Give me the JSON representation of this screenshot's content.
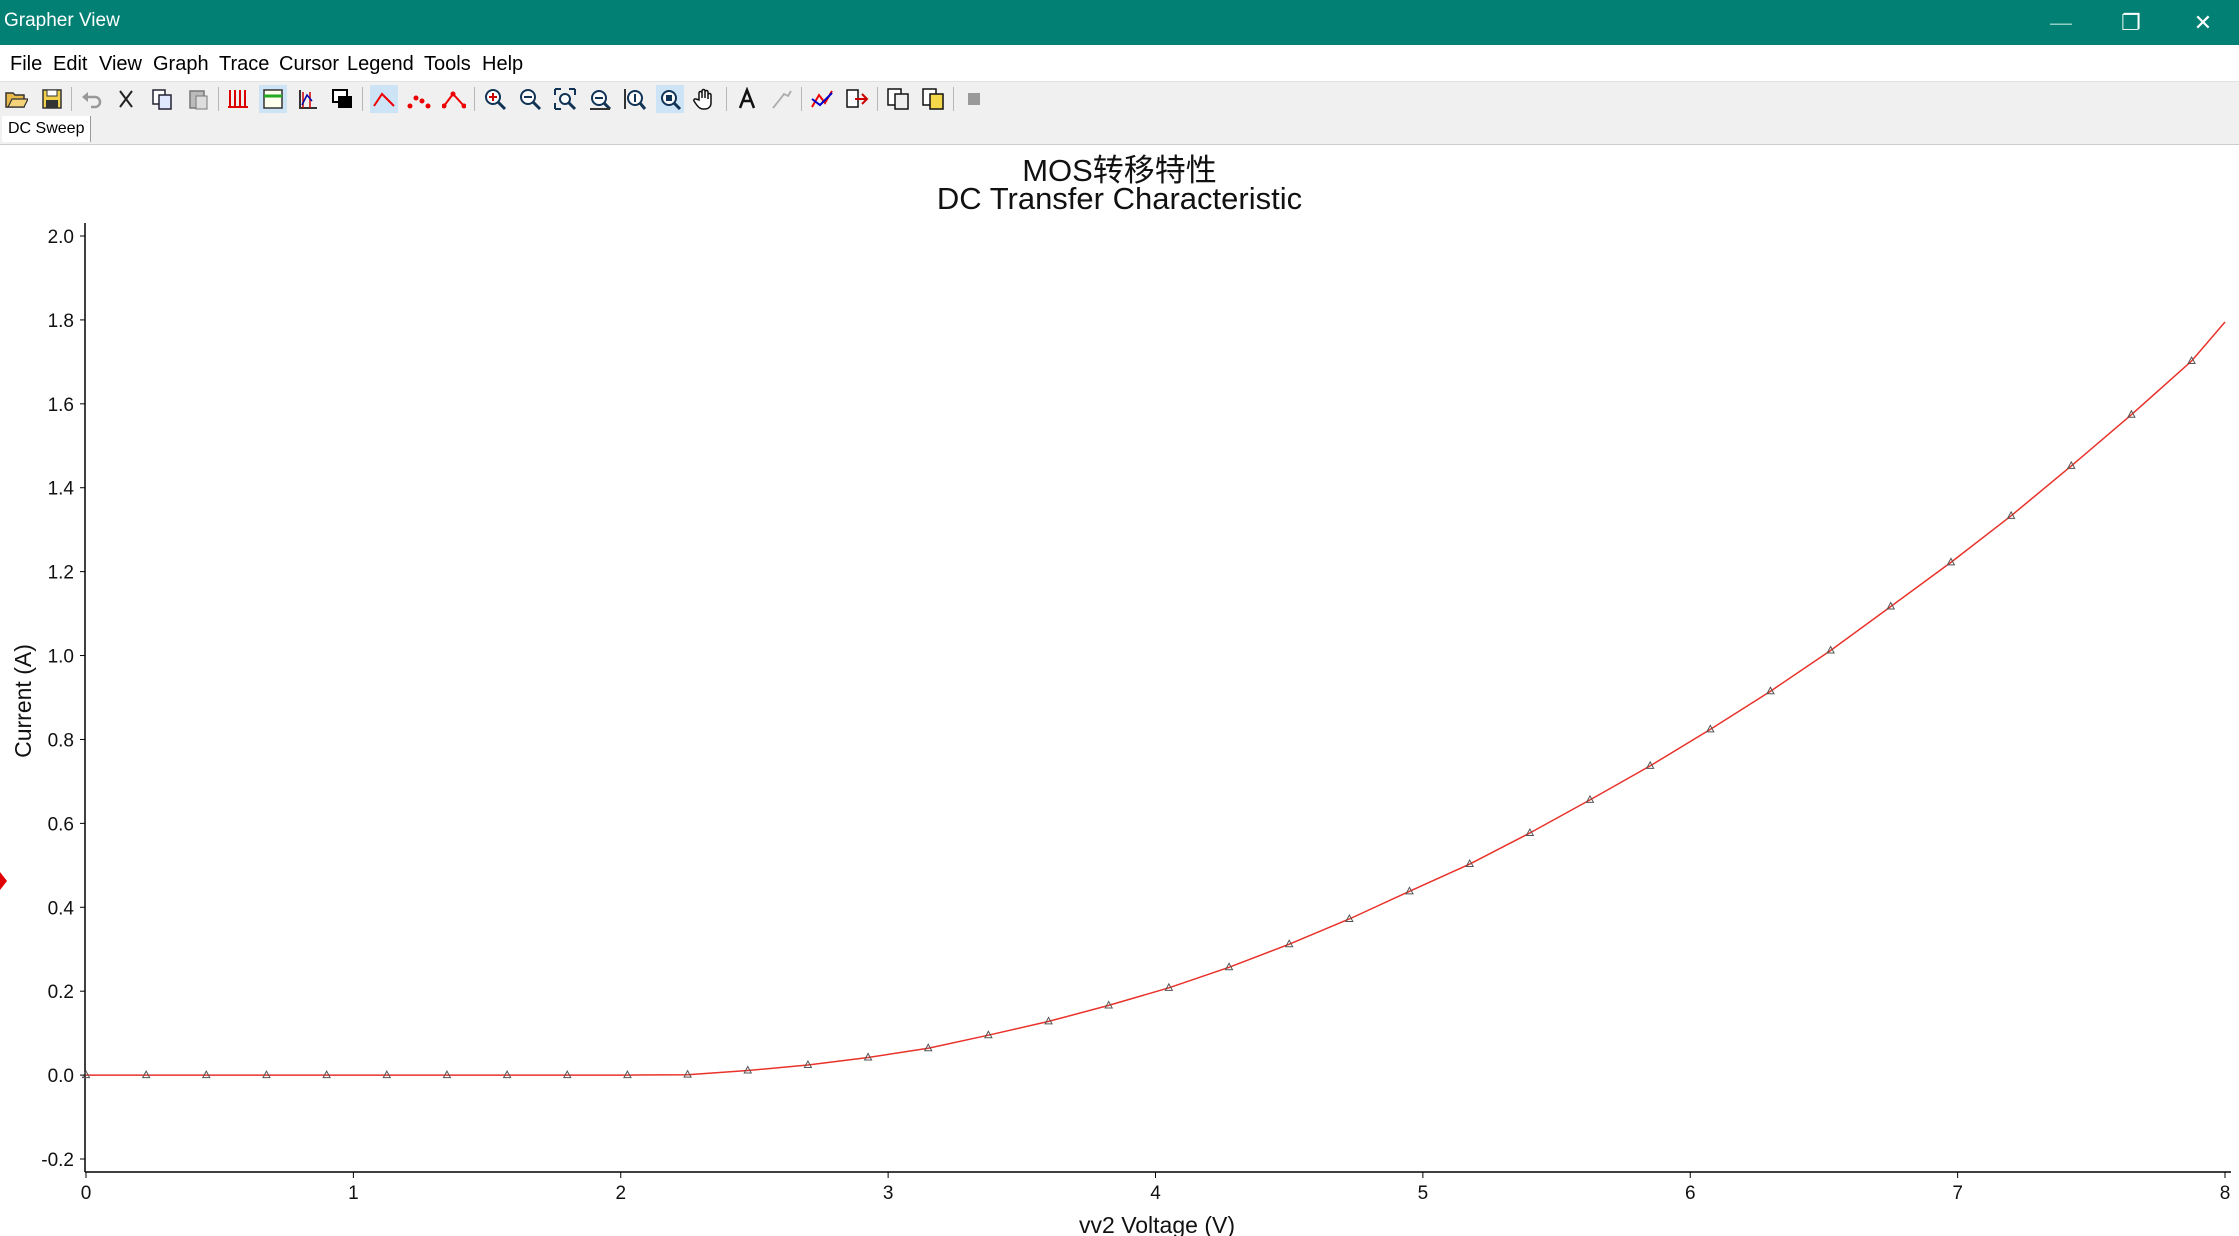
{
  "window": {
    "title": "Grapher View",
    "minimize_glyph": "—",
    "restore_glyph": "❐",
    "close_glyph": "✕"
  },
  "menu": [
    "File",
    "Edit",
    "View",
    "Graph",
    "Trace",
    "Cursor",
    "Legend",
    "Tools",
    "Help"
  ],
  "toolbar_icons": [
    "open-icon",
    "save-icon",
    "undo-icon",
    "cut-icon",
    "copy-icon",
    "paste-icon",
    "grid-icon",
    "legend-icon",
    "cursor-icon",
    "overlay-icon",
    "line-plot-icon",
    "scatter-plot-icon",
    "line-points-icon",
    "zoom-in-icon",
    "zoom-out-icon",
    "zoom-fit-icon",
    "zoom-x-icon",
    "zoom-y-icon",
    "zoom-area-icon",
    "pan-icon",
    "text-icon",
    "label-icon",
    "traces-icon",
    "export-icon",
    "copy-graph-icon",
    "paste-graph-icon",
    "stop-icon"
  ],
  "tabs": [
    {
      "label": "DC Sweep",
      "active": true
    }
  ],
  "chart_data": {
    "type": "line",
    "title": "MOS转移特性",
    "subtitle": "DC Transfer Characteristic",
    "xlabel": "vv2 Voltage (V)",
    "ylabel": "Current (A)",
    "xlim": [
      0,
      8
    ],
    "ylim": [
      -0.2,
      2.0
    ],
    "x_ticks": [
      "0",
      "1",
      "2",
      "3",
      "4",
      "5",
      "6",
      "7",
      "8"
    ],
    "y_ticks": [
      "-0.2",
      "0.0",
      "0.2",
      "0.4",
      "0.6",
      "0.8",
      "1.0",
      "1.2",
      "1.4",
      "1.6",
      "1.8",
      "2.0"
    ],
    "grid": false,
    "series": [
      {
        "color": "#e8322a",
        "marker": "triangle",
        "x": [
          0,
          0.225,
          0.45,
          0.675,
          0.9,
          1.125,
          1.35,
          1.575,
          1.8,
          2.025,
          2.25,
          2.475,
          2.7,
          2.925,
          3.15,
          3.375,
          3.6,
          3.825,
          4.05,
          4.275,
          4.5,
          4.725,
          4.95,
          5.175,
          5.4,
          5.625,
          5.85,
          6.075,
          6.3,
          6.525,
          6.75,
          6.975,
          7.2,
          7.425,
          7.65,
          7.875,
          8.0
        ],
        "y": [
          0,
          0,
          0,
          0,
          0,
          0,
          0,
          0,
          0,
          0,
          0.001,
          0.011,
          0.024,
          0.042,
          0.064,
          0.095,
          0.128,
          0.166,
          0.208,
          0.257,
          0.312,
          0.372,
          0.438,
          0.503,
          0.577,
          0.656,
          0.737,
          0.824,
          0.915,
          1.012,
          1.117,
          1.222,
          1.333,
          1.452,
          1.574,
          1.702,
          1.795
        ]
      }
    ]
  }
}
